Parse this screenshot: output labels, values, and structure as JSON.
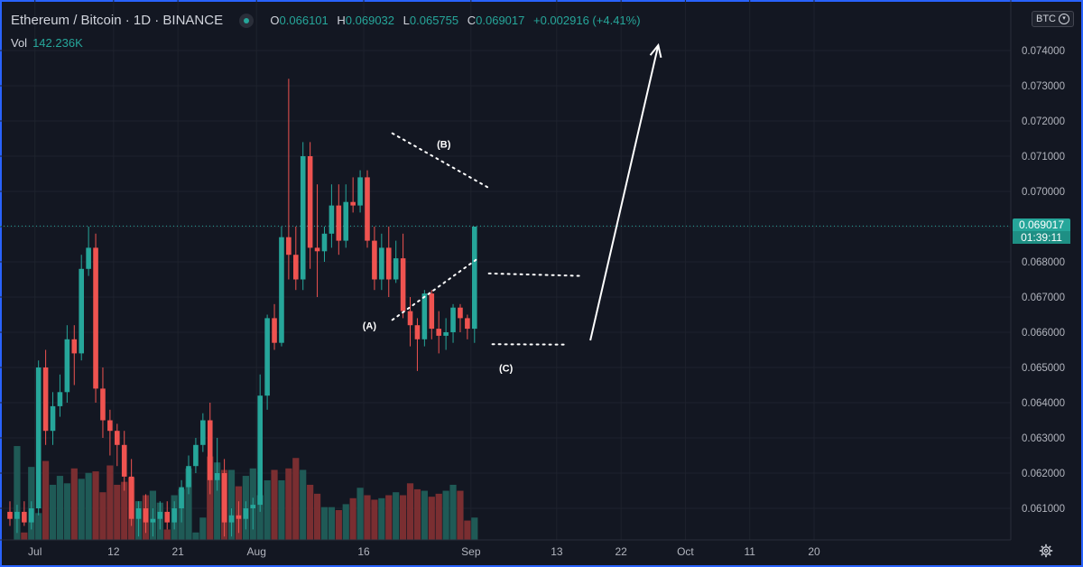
{
  "header": {
    "symbol": "Ethereum / Bitcoin · 1D · BINANCE",
    "o_label": "O",
    "o_value": "0.066101",
    "h_label": "H",
    "h_value": "0.069032",
    "l_label": "L",
    "l_value": "0.065755",
    "c_label": "C",
    "c_value": "0.069017",
    "change": "+0.002916 (+4.41%)"
  },
  "volume": {
    "label": "Vol",
    "value": "142.236K"
  },
  "currency_badge": {
    "label": "BTC",
    "chevron_icon": "chevron-down-icon"
  },
  "last_price": {
    "price": "0.069017",
    "countdown": "01:39:11"
  },
  "settings_icon": "gear-icon",
  "colors": {
    "background": "#131722",
    "up": "#26a69a",
    "down": "#ef5350",
    "vol_up": "#1f5a56",
    "vol_down": "#7a2e31",
    "frame": "#2962ff"
  },
  "chart_data": {
    "type": "candlestick",
    "y_axis": {
      "min": 0.0602,
      "max": 0.0748,
      "side": "right",
      "ticks": [
        "0.061000",
        "0.062000",
        "0.063000",
        "0.064000",
        "0.065000",
        "0.066000",
        "0.067000",
        "0.068000",
        "0.069000",
        "0.070000",
        "0.071000",
        "0.072000",
        "0.073000",
        "0.074000"
      ]
    },
    "x_axis": {
      "ticks": [
        {
          "i": 3.5,
          "label": "Jul"
        },
        {
          "i": 14.5,
          "label": "12"
        },
        {
          "i": 23.5,
          "label": "21"
        },
        {
          "i": 34.5,
          "label": "Aug"
        },
        {
          "i": 49.5,
          "label": "16"
        },
        {
          "i": 64.5,
          "label": "Sep"
        },
        {
          "i": 76.5,
          "label": "13"
        },
        {
          "i": 85.5,
          "label": "22"
        },
        {
          "i": 94.5,
          "label": "Oct"
        },
        {
          "i": 103.5,
          "label": "11"
        },
        {
          "i": 112.5,
          "label": "20"
        }
      ]
    },
    "candles": [
      [
        0.0609,
        0.0612,
        0.0605,
        0.0607
      ],
      [
        0.0607,
        0.0611,
        0.0603,
        0.0609
      ],
      [
        0.0609,
        0.0612,
        0.0605,
        0.0606
      ],
      [
        0.0606,
        0.0612,
        0.0604,
        0.061
      ],
      [
        0.061,
        0.0652,
        0.0608,
        0.065
      ],
      [
        0.065,
        0.0655,
        0.0628,
        0.0632
      ],
      [
        0.0632,
        0.0643,
        0.0628,
        0.0639
      ],
      [
        0.0639,
        0.0648,
        0.0636,
        0.0643
      ],
      [
        0.0643,
        0.0662,
        0.064,
        0.0658
      ],
      [
        0.0658,
        0.0662,
        0.0645,
        0.0654
      ],
      [
        0.0654,
        0.0682,
        0.0652,
        0.0678
      ],
      [
        0.0678,
        0.069,
        0.0676,
        0.0684
      ],
      [
        0.0684,
        0.0688,
        0.064,
        0.0644
      ],
      [
        0.0644,
        0.065,
        0.063,
        0.0635
      ],
      [
        0.0635,
        0.0638,
        0.0625,
        0.0632
      ],
      [
        0.0632,
        0.0634,
        0.0622,
        0.0628
      ],
      [
        0.0628,
        0.0632,
        0.0615,
        0.0619
      ],
      [
        0.0619,
        0.0624,
        0.0605,
        0.0607
      ],
      [
        0.0607,
        0.0612,
        0.0602,
        0.061
      ],
      [
        0.061,
        0.0614,
        0.0603,
        0.0606
      ],
      [
        0.0606,
        0.061,
        0.0602,
        0.0607
      ],
      [
        0.0607,
        0.0612,
        0.0604,
        0.0609
      ],
      [
        0.0609,
        0.0612,
        0.0604,
        0.0606
      ],
      [
        0.0606,
        0.0612,
        0.0604,
        0.061
      ],
      [
        0.061,
        0.0618,
        0.0606,
        0.0616
      ],
      [
        0.0616,
        0.0625,
        0.0614,
        0.0622
      ],
      [
        0.0622,
        0.063,
        0.062,
        0.0628
      ],
      [
        0.0628,
        0.0637,
        0.0626,
        0.0635
      ],
      [
        0.0635,
        0.064,
        0.0614,
        0.0618
      ],
      [
        0.0618,
        0.063,
        0.0615,
        0.062
      ],
      [
        0.062,
        0.0624,
        0.0602,
        0.0606
      ],
      [
        0.0606,
        0.061,
        0.0602,
        0.0608
      ],
      [
        0.0608,
        0.0612,
        0.0603,
        0.0607
      ],
      [
        0.0607,
        0.0612,
        0.0604,
        0.061
      ],
      [
        0.061,
        0.0613,
        0.0604,
        0.0611
      ],
      [
        0.0611,
        0.0648,
        0.0609,
        0.0642
      ],
      [
        0.0642,
        0.0665,
        0.0638,
        0.0664
      ],
      [
        0.0664,
        0.0668,
        0.0655,
        0.0657
      ],
      [
        0.0657,
        0.069,
        0.0656,
        0.0687
      ],
      [
        0.0687,
        0.0732,
        0.0675,
        0.0682
      ],
      [
        0.0682,
        0.069,
        0.0672,
        0.0675
      ],
      [
        0.0675,
        0.0714,
        0.0672,
        0.071
      ],
      [
        0.071,
        0.0714,
        0.0678,
        0.0684
      ],
      [
        0.0684,
        0.0702,
        0.067,
        0.0683
      ],
      [
        0.0683,
        0.069,
        0.068,
        0.0688
      ],
      [
        0.0688,
        0.0702,
        0.0684,
        0.0696
      ],
      [
        0.0696,
        0.0702,
        0.0682,
        0.0686
      ],
      [
        0.0686,
        0.0702,
        0.0684,
        0.0697
      ],
      [
        0.0697,
        0.0704,
        0.0694,
        0.0696
      ],
      [
        0.0696,
        0.0706,
        0.0694,
        0.0704
      ],
      [
        0.0704,
        0.0706,
        0.0684,
        0.0686
      ],
      [
        0.0686,
        0.069,
        0.0672,
        0.0675
      ],
      [
        0.0675,
        0.0688,
        0.0672,
        0.0684
      ],
      [
        0.0684,
        0.069,
        0.067,
        0.0675
      ],
      [
        0.0675,
        0.0686,
        0.0674,
        0.0681
      ],
      [
        0.0681,
        0.0688,
        0.0664,
        0.0666
      ],
      [
        0.0666,
        0.067,
        0.0656,
        0.0662
      ],
      [
        0.0662,
        0.0664,
        0.0649,
        0.0658
      ],
      [
        0.0658,
        0.0672,
        0.0656,
        0.0671
      ],
      [
        0.0671,
        0.0672,
        0.0658,
        0.0661
      ],
      [
        0.0661,
        0.0666,
        0.0654,
        0.0659
      ],
      [
        0.0659,
        0.0664,
        0.0655,
        0.066
      ],
      [
        0.066,
        0.0668,
        0.0657,
        0.0667
      ],
      [
        0.0667,
        0.0668,
        0.066,
        0.0664
      ],
      [
        0.0664,
        0.0665,
        0.0658,
        0.0661
      ],
      [
        0.0661,
        0.069,
        0.0657,
        0.069
      ]
    ],
    "volumes": [
      0.0,
      6.3,
      0.5,
      4.9,
      1.8,
      5.3,
      3.7,
      4.3,
      3.8,
      4.8,
      4.1,
      4.5,
      4.6,
      3.2,
      5.0,
      3.7,
      3.9,
      4.2,
      2.6,
      3.0,
      3.3,
      2.5,
      0.7,
      3.0,
      3.4,
      4.8,
      0.5,
      1.5,
      5.6,
      5.2,
      4.7,
      4.7,
      3.6,
      4.3,
      4.8,
      3.0,
      4.0,
      4.7,
      4.0,
      4.8,
      5.5,
      4.7,
      3.7,
      3.1,
      2.2,
      2.2,
      2.0,
      2.4,
      2.8,
      3.5,
      3.0,
      2.7,
      2.8,
      3.0,
      3.2,
      3.0,
      3.8,
      3.4,
      3.3,
      2.9,
      3.1,
      3.3,
      3.7,
      3.3,
      1.3,
      1.5
    ]
  },
  "annotations": [
    {
      "label": "(A)"
    },
    {
      "label": "(B)"
    },
    {
      "label": "(C)"
    }
  ]
}
